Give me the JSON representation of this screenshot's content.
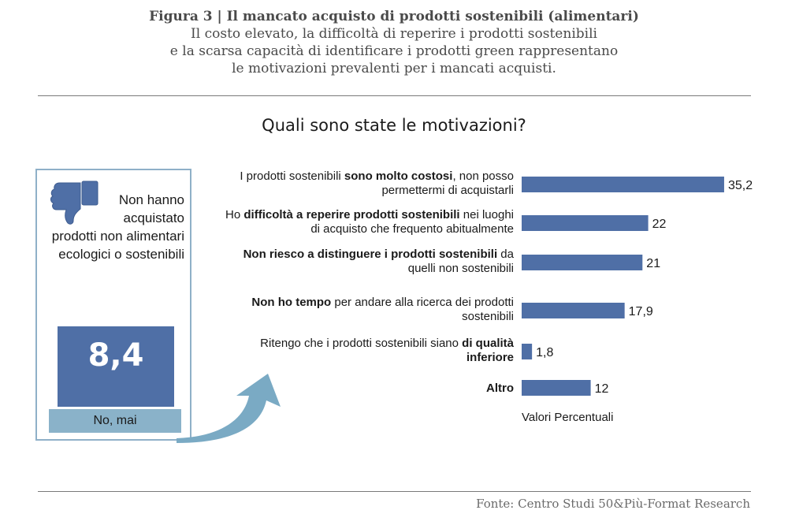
{
  "header": {
    "title": "Figura 3 | Il mancato acquisto di prodotti sostenibili (alimentari)",
    "subtitle_lines": [
      "Il costo elevato, la difficoltà di reperire i prodotti sostenibili",
      "e la scarsa capacità di identificare i prodotti green rappresentano",
      "le motivazioni prevalenti per i mancati acquisti."
    ]
  },
  "question": "Quali sono state le motivazioni?",
  "left_panel": {
    "caption_lines": [
      "Non hanno",
      "acquistato",
      "prodotti non alimentari",
      "ecologici o sostenibili"
    ],
    "value": "8,4",
    "label": "No, mai",
    "icon": "thumbs-down-icon"
  },
  "chart_data": {
    "type": "bar",
    "orientation": "horizontal",
    "categories": [
      [
        {
          "t": "I prodotti sostenibili ",
          "b": false
        },
        {
          "t": "sono molto costosi",
          "b": true
        },
        {
          "t": ", non posso permettermi di acquistarli",
          "b": false
        }
      ],
      [
        {
          "t": "Ho ",
          "b": false
        },
        {
          "t": "difficoltà a reperire prodotti sostenibili",
          "b": true
        },
        {
          "t": " nei luoghi di acquisto che frequento abitualmente",
          "b": false
        }
      ],
      [
        {
          "t": "Non riesco a distinguere i prodotti sostenibili",
          "b": true
        },
        {
          "t": " da quelli non sostenibili",
          "b": false
        }
      ],
      [
        {
          "t": "Non ho tempo",
          "b": true
        },
        {
          "t": " per andare alla ricerca dei prodotti sostenibili",
          "b": false
        }
      ],
      [
        {
          "t": "Ritengo che i prodotti sostenibili siano ",
          "b": false
        },
        {
          "t": "di qualità inferiore",
          "b": true
        }
      ],
      [
        {
          "t": "Altro",
          "b": true
        }
      ]
    ],
    "category_lines": [
      [
        [
          {
            "t": "I prodotti sostenibili ",
            "b": false
          },
          {
            "t": "sono molto costosi",
            "b": true
          },
          {
            "t": ", non posso",
            "b": false
          }
        ],
        [
          {
            "t": "permettermi di acquistarli",
            "b": false
          }
        ]
      ],
      [
        [
          {
            "t": "Ho ",
            "b": false
          },
          {
            "t": "difficoltà a reperire prodotti sostenibili",
            "b": true
          },
          {
            "t": " nei luoghi",
            "b": false
          }
        ],
        [
          {
            "t": "di acquisto che frequento abitualmente",
            "b": false
          }
        ]
      ],
      [
        [
          {
            "t": "Non riesco a distinguere i prodotti sostenibili",
            "b": true
          },
          {
            "t": "  da",
            "b": false
          }
        ],
        [
          {
            "t": "quelli non sostenibili",
            "b": false
          }
        ]
      ],
      [
        [
          {
            "t": "Non ho tempo",
            "b": true
          },
          {
            "t": " per andare alla ricerca dei prodotti",
            "b": false
          }
        ],
        [
          {
            "t": "sostenibili",
            "b": false
          }
        ]
      ],
      [
        [
          {
            "t": "Ritengo che i prodotti sostenibili siano ",
            "b": false
          },
          {
            "t": "di qualità",
            "b": true
          }
        ],
        [
          {
            "t": "inferiore",
            "b": true
          }
        ]
      ],
      [
        [
          {
            "t": "Altro",
            "b": true
          }
        ]
      ]
    ],
    "values": [
      35.2,
      22,
      21,
      17.9,
      1.8,
      12
    ],
    "value_labels": [
      "35,2",
      "22",
      "21",
      "17,9",
      "1,8",
      "12"
    ],
    "xlabel": "Valori Percentuali",
    "bar_color": "#4f6fa6",
    "grid": false,
    "legend": "none"
  },
  "colors": {
    "bar": "#4f6fa6",
    "light": "#8ab2c9"
  },
  "footer": {
    "source": "Fonte: Centro Studi 50&Più-Format Research"
  }
}
